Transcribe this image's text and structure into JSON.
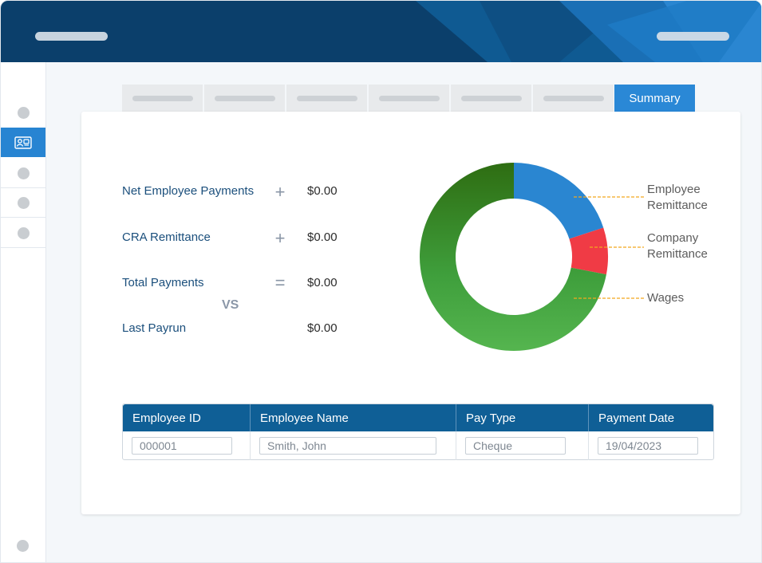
{
  "tabs": {
    "active_label": "Summary"
  },
  "summary": {
    "rows": [
      {
        "label": "Net Employee Payments",
        "operator": "+",
        "value": "$0.00"
      },
      {
        "label": "CRA Remittance",
        "operator": "+",
        "value": "$0.00"
      },
      {
        "label": "Total Payments",
        "operator": "=",
        "value": "$0.00"
      },
      {
        "label": "Last Payrun",
        "operator": "",
        "value": "$0.00"
      }
    ],
    "vs_label": "VS"
  },
  "chart_data": {
    "type": "pie",
    "title": "",
    "categories": [
      "Employee Remittance",
      "Company Remittance",
      "Wages"
    ],
    "values": [
      20,
      8,
      72
    ],
    "legend_lines": [
      [
        "Employee",
        "Remittance"
      ],
      [
        "Company",
        "Remittance"
      ],
      [
        "Wages"
      ]
    ],
    "colors": [
      "#2a86d1",
      "#f03b45",
      "#3f9f3c"
    ]
  },
  "table": {
    "headers": [
      "Employee ID",
      "Employee Name",
      "Pay Type",
      "Payment Date"
    ],
    "rows": [
      [
        "000001",
        "Smith, John",
        "Cheque",
        "19/04/2023"
      ]
    ]
  },
  "colors": {
    "header_bg": "#0b3f6b",
    "accent": "#2a88d6",
    "table_header": "#0f5f96",
    "label_text": "#1b4f7c"
  },
  "icons": {
    "active_sidebar": "employee-card-icon"
  }
}
